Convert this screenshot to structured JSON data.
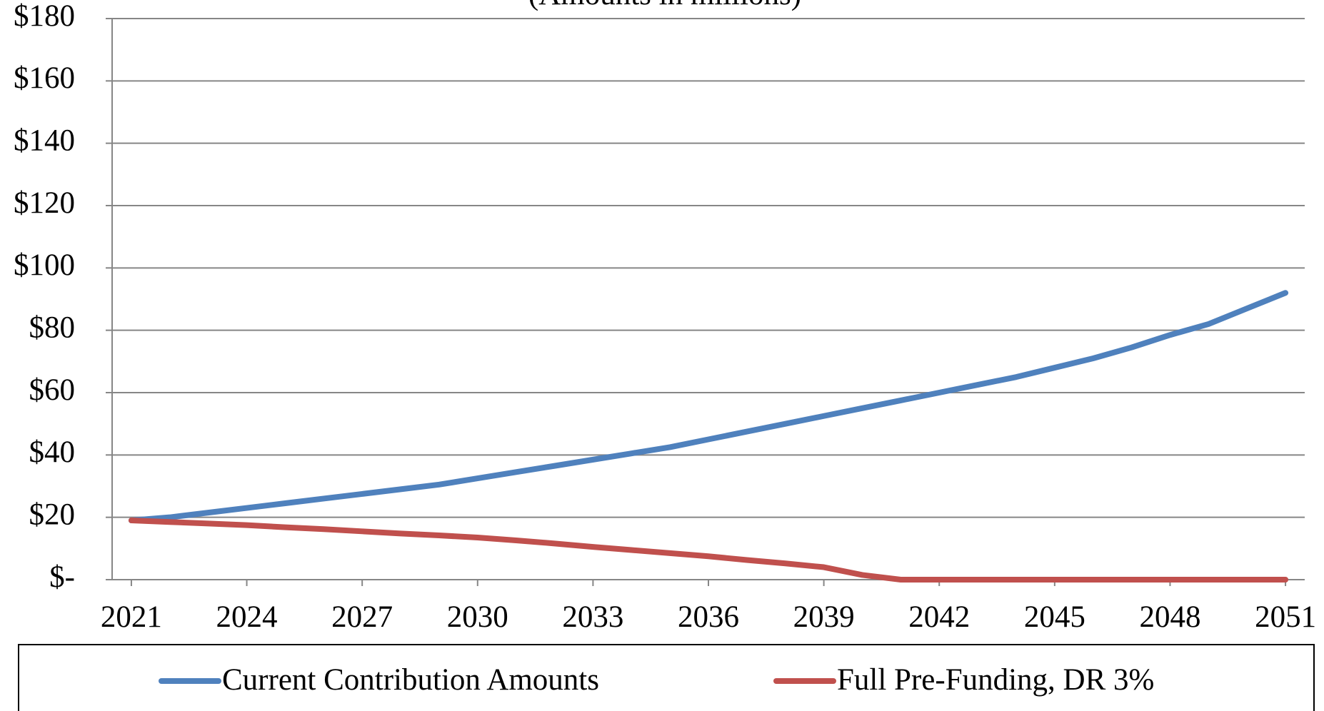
{
  "chart_data": {
    "type": "line",
    "subtitle": "(Amounts in millions)",
    "x": [
      2021,
      2022,
      2023,
      2024,
      2025,
      2026,
      2027,
      2028,
      2029,
      2030,
      2031,
      2032,
      2033,
      2034,
      2035,
      2036,
      2037,
      2038,
      2039,
      2040,
      2041,
      2042,
      2043,
      2044,
      2045,
      2046,
      2047,
      2048,
      2049,
      2050,
      2051
    ],
    "series": [
      {
        "name": "Current Contribution Amounts",
        "color": "#4f81bd",
        "values": [
          19,
          20,
          21.5,
          23,
          24.5,
          26,
          27.5,
          29,
          30.5,
          32.5,
          34.5,
          36.5,
          38.5,
          40.5,
          42.5,
          45,
          47.5,
          50,
          52.5,
          55,
          57.5,
          60,
          62.5,
          65,
          68,
          71,
          74.5,
          78.5,
          82,
          87,
          92
        ]
      },
      {
        "name": "Full Pre-Funding, DR 3%",
        "color": "#c0504d",
        "values": [
          19,
          18.5,
          18,
          17.5,
          16.8,
          16.2,
          15.5,
          14.8,
          14.2,
          13.5,
          12.6,
          11.6,
          10.5,
          9.5,
          8.5,
          7.5,
          6.3,
          5.2,
          4,
          1.5,
          0,
          0,
          0,
          0,
          0,
          0,
          0,
          0,
          0,
          0,
          0
        ]
      }
    ],
    "xlim": [
      2020.5,
      2051.5
    ],
    "xticks": [
      2021,
      2024,
      2027,
      2030,
      2033,
      2036,
      2039,
      2042,
      2045,
      2048,
      2051
    ],
    "ylim": [
      0,
      180
    ],
    "yticks": [
      {
        "value": 0,
        "label": "$-"
      },
      {
        "value": 20,
        "label": "$20"
      },
      {
        "value": 40,
        "label": "$40"
      },
      {
        "value": 60,
        "label": "$60"
      },
      {
        "value": 80,
        "label": "$80"
      },
      {
        "value": 100,
        "label": "$100"
      },
      {
        "value": 120,
        "label": "$120"
      },
      {
        "value": 140,
        "label": "$140"
      },
      {
        "value": 160,
        "label": "$160"
      },
      {
        "value": 180,
        "label": "$180"
      }
    ],
    "grid": true
  }
}
